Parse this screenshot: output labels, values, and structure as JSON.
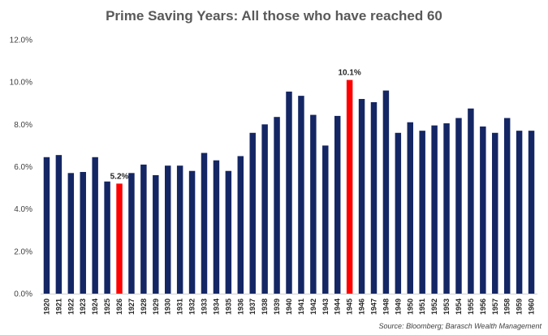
{
  "chart_data": {
    "type": "bar",
    "title": "Prime Saving Years: All those who have reached 60",
    "source": "Source: Bloomberg; Barasch Wealth Management",
    "categories": [
      "1920",
      "1921",
      "1922",
      "1923",
      "1924",
      "1925",
      "1926",
      "1927",
      "1928",
      "1929",
      "1930",
      "1931",
      "1932",
      "1933",
      "1934",
      "1935",
      "1936",
      "1937",
      "1938",
      "1939",
      "1940",
      "1941",
      "1942",
      "1943",
      "1944",
      "1945",
      "1946",
      "1947",
      "1948",
      "1949",
      "1950",
      "1951",
      "1952",
      "1953",
      "1954",
      "1955",
      "1956",
      "1957",
      "1958",
      "1959",
      "1960"
    ],
    "values": [
      6.45,
      6.55,
      5.7,
      5.75,
      6.45,
      5.3,
      5.2,
      5.7,
      6.1,
      5.6,
      6.05,
      6.05,
      5.8,
      6.65,
      6.3,
      5.8,
      6.5,
      7.6,
      8.0,
      8.35,
      9.55,
      9.35,
      8.45,
      7.0,
      8.4,
      10.1,
      9.2,
      9.05,
      9.6,
      7.6,
      8.1,
      7.7,
      7.95,
      8.05,
      8.3,
      8.75,
      7.9,
      7.6,
      8.3,
      7.7,
      7.7
    ],
    "highlight_indices": [
      6,
      25
    ],
    "data_labels": [
      {
        "index": 6,
        "text": "5.2%"
      },
      {
        "index": 25,
        "text": "10.1%"
      }
    ],
    "yticks": [
      "0.0%",
      "2.0%",
      "4.0%",
      "6.0%",
      "8.0%",
      "10.0%",
      "12.0%"
    ],
    "ylim": [
      0,
      12
    ],
    "bar_color": "#142664",
    "highlight_color": "#FF0000",
    "grid": false,
    "legend": "none"
  }
}
